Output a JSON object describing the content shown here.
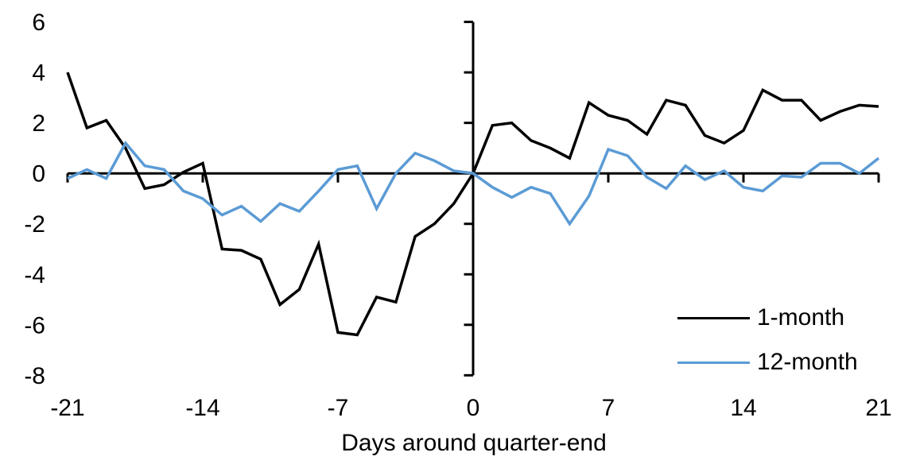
{
  "chart_data": {
    "type": "line",
    "title": "",
    "xlabel": "Days around quarter-end",
    "ylabel": "",
    "xlim": [
      -21,
      21
    ],
    "ylim": [
      -8,
      6
    ],
    "x_ticks": [
      -21,
      -14,
      -7,
      0,
      7,
      14,
      21
    ],
    "y_ticks": [
      6,
      4,
      2,
      0,
      -2,
      -4,
      -6,
      -8
    ],
    "grid": "off",
    "legend_position": "inside-bottom-right",
    "background_color": "#FFFFFF",
    "axis_color": "#000000",
    "x": [
      -21,
      -20,
      -19,
      -18,
      -17,
      -16,
      -15,
      -14,
      -13,
      -12,
      -11,
      -10,
      -9,
      -8,
      -7,
      -6,
      -5,
      -4,
      -3,
      -2,
      -1,
      0,
      1,
      2,
      3,
      4,
      5,
      6,
      7,
      8,
      9,
      10,
      11,
      12,
      13,
      14,
      15,
      16,
      17,
      18,
      19,
      20,
      21
    ],
    "series": [
      {
        "name": "1-month",
        "color": "#000000",
        "values": [
          4.0,
          1.8,
          2.1,
          1.0,
          -0.6,
          -0.45,
          0.05,
          0.4,
          -3.0,
          -3.05,
          -3.4,
          -5.2,
          -4.6,
          -2.8,
          -6.3,
          -6.4,
          -4.9,
          -5.1,
          -2.5,
          -2.0,
          -1.2,
          0.0,
          1.9,
          2.0,
          1.3,
          1.0,
          0.6,
          2.8,
          2.3,
          2.1,
          1.55,
          2.9,
          2.7,
          1.5,
          1.2,
          1.7,
          3.3,
          2.9,
          2.9,
          2.1,
          2.45,
          2.7,
          2.65
        ]
      },
      {
        "name": "12-month",
        "color": "#5B9BD5",
        "values": [
          -0.2,
          0.15,
          -0.2,
          1.2,
          0.3,
          0.15,
          -0.7,
          -1.0,
          -1.65,
          -1.3,
          -1.9,
          -1.2,
          -1.5,
          -0.7,
          0.15,
          0.3,
          -1.4,
          0.0,
          0.8,
          0.5,
          0.1,
          0.0,
          -0.55,
          -0.95,
          -0.55,
          -0.8,
          -2.0,
          -0.9,
          0.95,
          0.7,
          -0.15,
          -0.6,
          0.3,
          -0.25,
          0.1,
          -0.55,
          -0.7,
          -0.1,
          -0.15,
          0.4,
          0.4,
          0.0,
          0.6
        ]
      }
    ]
  }
}
